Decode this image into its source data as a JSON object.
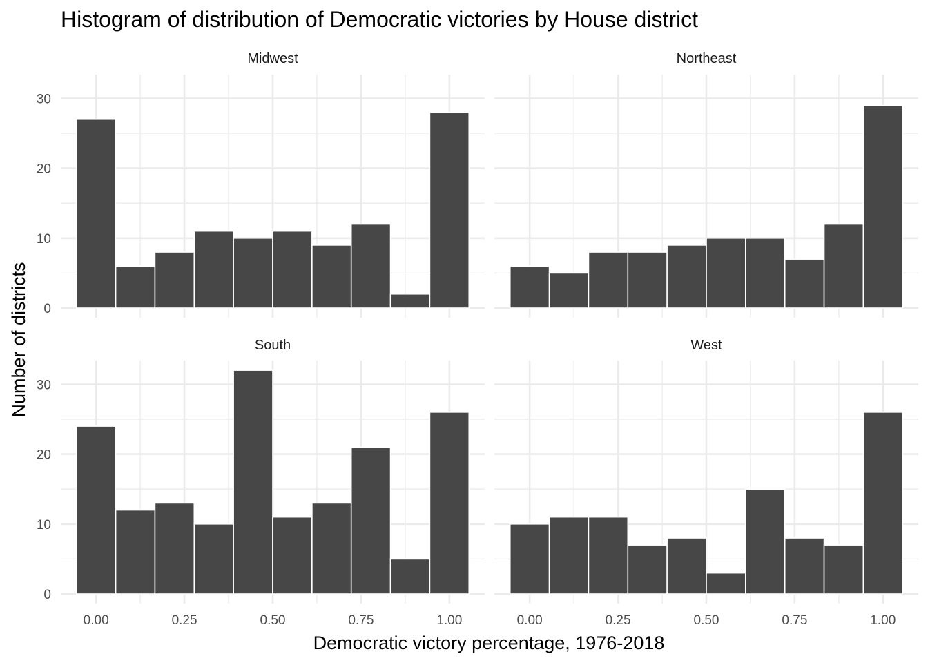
{
  "chart_data": {
    "type": "bar",
    "title": "Histogram of distribution of Democratic victories by House district",
    "xlabel": "Democratic victory percentage, 1976-2018",
    "ylabel": "Number of districts",
    "bar_color": "#474747",
    "grid": true,
    "x_ticks": [
      "0.00",
      "0.25",
      "0.50",
      "0.75",
      "1.00"
    ],
    "x_tick_values": [
      0,
      0.25,
      0.5,
      0.75,
      1.0
    ],
    "y_ticks": [
      "0",
      "10",
      "20",
      "30"
    ],
    "y_tick_values": [
      0,
      10,
      20,
      30
    ],
    "xlim": [
      -0.1,
      1.1
    ],
    "ylim": [
      0,
      33
    ],
    "bin_width": 0.1111,
    "bin_centers": [
      0,
      0.1111,
      0.2222,
      0.3333,
      0.4444,
      0.5556,
      0.6667,
      0.7778,
      0.8889,
      1.0
    ],
    "panels": [
      {
        "name": "Midwest",
        "values": [
          27,
          6,
          8,
          11,
          10,
          11,
          9,
          12,
          2,
          28
        ]
      },
      {
        "name": "Northeast",
        "values": [
          6,
          5,
          8,
          8,
          9,
          10,
          10,
          7,
          12,
          29
        ]
      },
      {
        "name": "South",
        "values": [
          24,
          12,
          13,
          10,
          32,
          11,
          13,
          21,
          5,
          26
        ]
      },
      {
        "name": "West",
        "values": [
          10,
          11,
          11,
          7,
          8,
          3,
          15,
          8,
          7,
          26
        ]
      }
    ]
  }
}
